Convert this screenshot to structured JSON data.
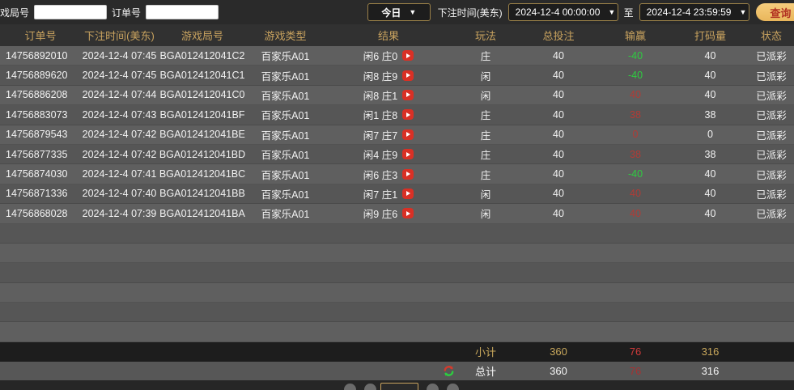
{
  "topbar": {
    "game_round_label": "游戏局号",
    "game_round_value": "",
    "order_no_label": "订单号",
    "order_no_value": "",
    "range_selected": "今日",
    "bet_time_label": "下注时间(美东)",
    "time_from": "2024-12-4 00:00:00",
    "to_label": "至",
    "time_to": "2024-12-4 23:59:59",
    "query_button_label": "查询",
    "dropdown_arrow": "▼"
  },
  "table": {
    "headers": [
      "订单号",
      "下注时间(美东)",
      "游戏局号",
      "游戏类型",
      "结果",
      "玩法",
      "总投注",
      "输赢",
      "打码量",
      "状态"
    ],
    "rows": [
      {
        "order": "14756892010",
        "time": "2024-12-4 07:45",
        "round": "BGA012412041C2",
        "type": "百家乐A01",
        "result": "闲6 庄0",
        "play": "庄",
        "bet": "40",
        "winloss": "-40",
        "wl_color": "green",
        "rolling": "40",
        "status": "已派彩"
      },
      {
        "order": "14756889620",
        "time": "2024-12-4 07:45",
        "round": "BGA012412041C1",
        "type": "百家乐A01",
        "result": "闲8 庄9",
        "play": "闲",
        "bet": "40",
        "winloss": "-40",
        "wl_color": "green",
        "rolling": "40",
        "status": "已派彩"
      },
      {
        "order": "14756886208",
        "time": "2024-12-4 07:44",
        "round": "BGA012412041C0",
        "type": "百家乐A01",
        "result": "闲8 庄1",
        "play": "闲",
        "bet": "40",
        "winloss": "40",
        "wl_color": "red",
        "rolling": "40",
        "status": "已派彩"
      },
      {
        "order": "14756883073",
        "time": "2024-12-4 07:43",
        "round": "BGA012412041BF",
        "type": "百家乐A01",
        "result": "闲1 庄8",
        "play": "庄",
        "bet": "40",
        "winloss": "38",
        "wl_color": "red",
        "rolling": "38",
        "status": "已派彩"
      },
      {
        "order": "14756879543",
        "time": "2024-12-4 07:42",
        "round": "BGA012412041BE",
        "type": "百家乐A01",
        "result": "闲7 庄7",
        "play": "庄",
        "bet": "40",
        "winloss": "0",
        "wl_color": "red",
        "rolling": "0",
        "status": "已派彩"
      },
      {
        "order": "14756877335",
        "time": "2024-12-4 07:42",
        "round": "BGA012412041BD",
        "type": "百家乐A01",
        "result": "闲4 庄9",
        "play": "庄",
        "bet": "40",
        "winloss": "38",
        "wl_color": "red",
        "rolling": "38",
        "status": "已派彩"
      },
      {
        "order": "14756874030",
        "time": "2024-12-4 07:41",
        "round": "BGA012412041BC",
        "type": "百家乐A01",
        "result": "闲6 庄3",
        "play": "庄",
        "bet": "40",
        "winloss": "-40",
        "wl_color": "green",
        "rolling": "40",
        "status": "已派彩"
      },
      {
        "order": "14756871336",
        "time": "2024-12-4 07:40",
        "round": "BGA012412041BB",
        "type": "百家乐A01",
        "result": "闲7 庄1",
        "play": "闲",
        "bet": "40",
        "winloss": "40",
        "wl_color": "red",
        "rolling": "40",
        "status": "已派彩"
      },
      {
        "order": "14756868028",
        "time": "2024-12-4 07:39",
        "round": "BGA012412041BA",
        "type": "百家乐A01",
        "result": "闲9 庄6",
        "play": "闲",
        "bet": "40",
        "winloss": "40",
        "wl_color": "red",
        "rolling": "40",
        "status": "已派彩"
      }
    ],
    "empty_row_count": 6,
    "subtotal": {
      "label": "小计",
      "bet": "360",
      "winloss": "76",
      "rolling": "316"
    },
    "total": {
      "label": "总计",
      "bet": "360",
      "winloss": "76",
      "rolling": "316"
    }
  },
  "icons": {
    "play": "play-icon",
    "refresh": "refresh-icon"
  },
  "colors": {
    "accent_gold": "#c9a35f",
    "win_red": "#b23b35",
    "loss_green": "#2ecc40",
    "summary_red": "#cf3a3a",
    "query_button_bg": "#eec36e",
    "query_button_text": "#b23222",
    "play_icon_bg": "#d93025"
  }
}
